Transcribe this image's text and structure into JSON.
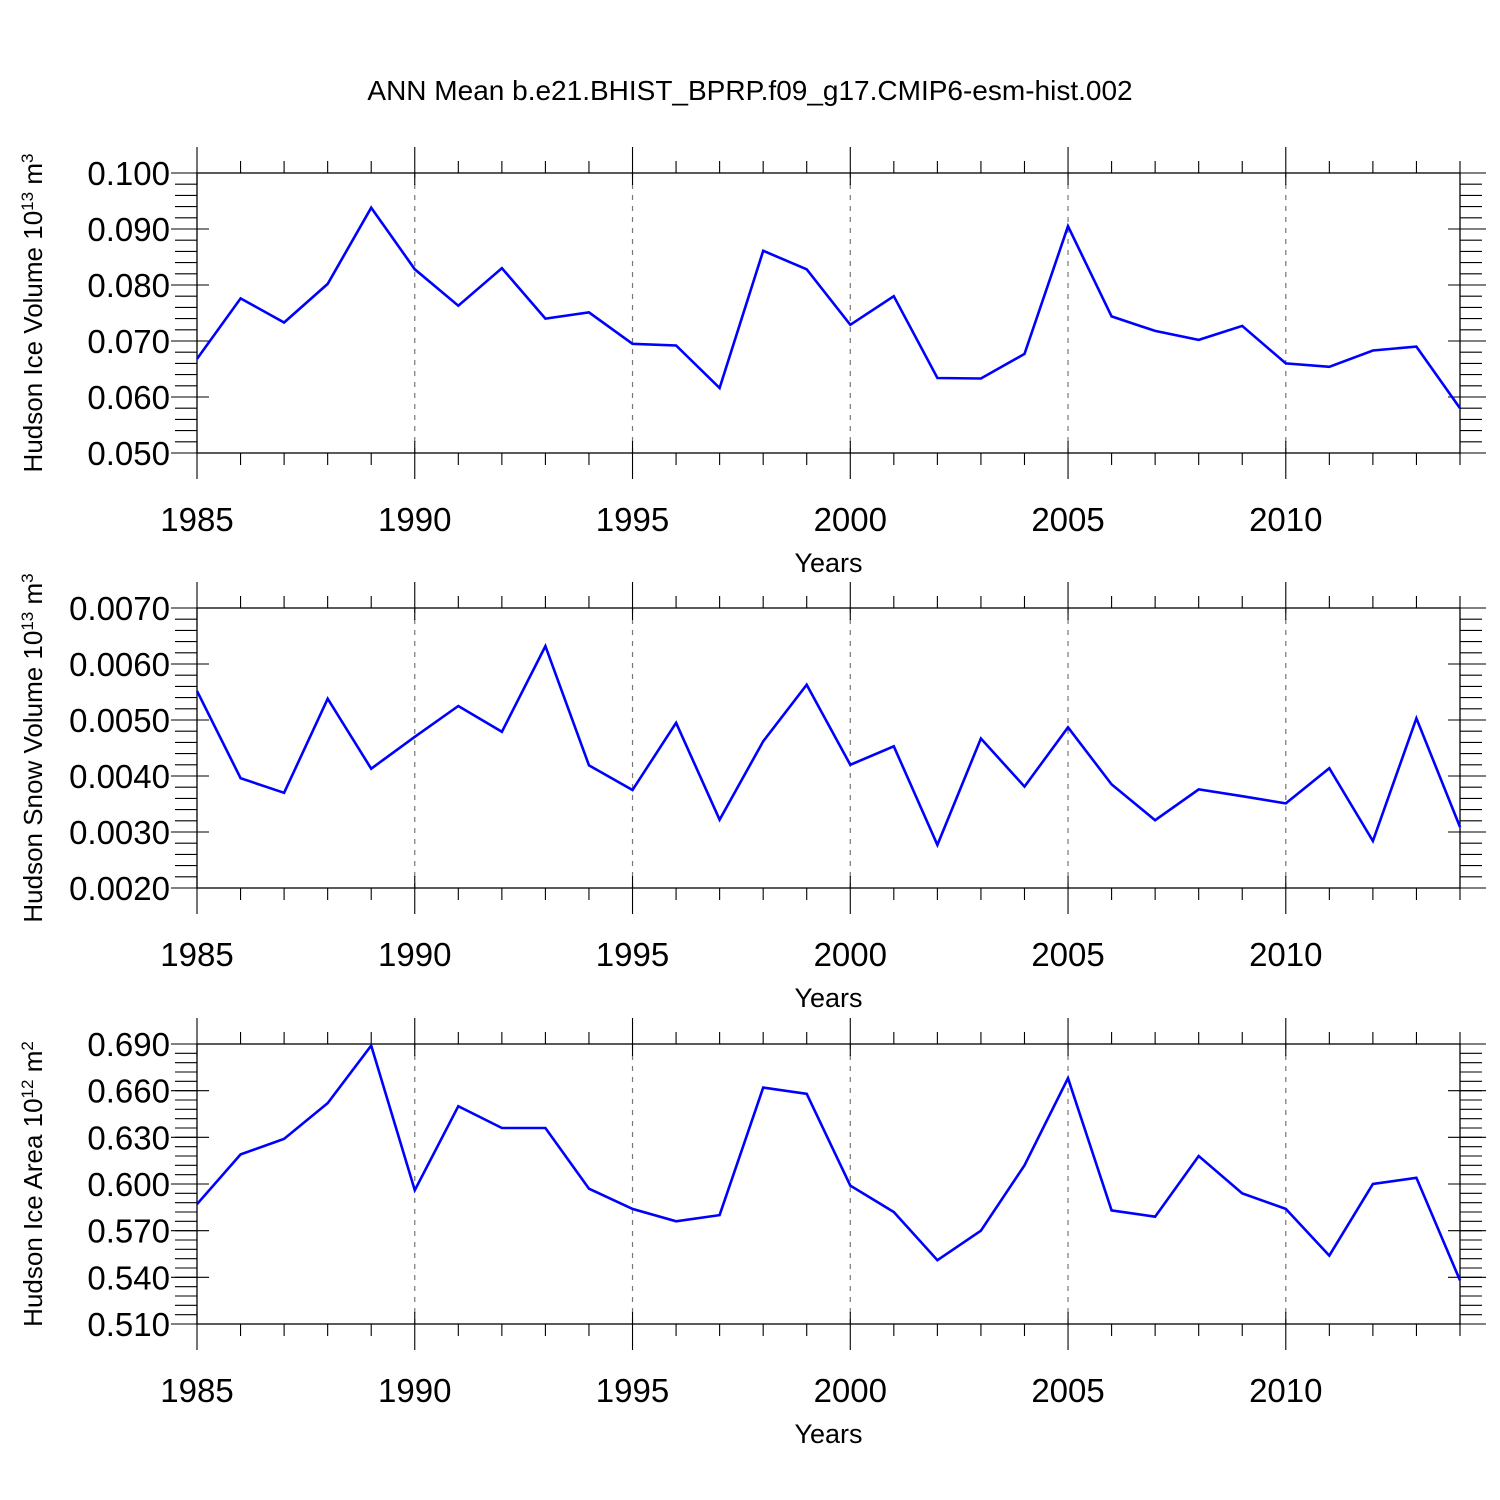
{
  "figure": {
    "title": "ANN Mean b.e21.BHIST_BPRP.f09_g17.CMIP6-esm-hist.002",
    "line_color": "#0000ff"
  },
  "chart_data": [
    {
      "type": "line",
      "title": "",
      "xlabel": "Years",
      "ylabel_prefix": "Hudson Ice Volume 10",
      "ylabel_exp": "13",
      "ylabel_unit": " m",
      "ylabel_unit_exp": "3",
      "xlim": [
        1985,
        2014
      ],
      "ylim": [
        0.05,
        0.1
      ],
      "x_ticks": [
        1985,
        1990,
        1995,
        2000,
        2005,
        2010
      ],
      "x_tick_labels": [
        "1985",
        "1990",
        "1995",
        "2000",
        "2005",
        "2010"
      ],
      "y_ticks": [
        0.05,
        0.06,
        0.07,
        0.08,
        0.09,
        0.1
      ],
      "y_tick_labels": [
        "0.050",
        "0.060",
        "0.070",
        "0.080",
        "0.090",
        "0.100"
      ],
      "y_minor_step": 0.002,
      "grid": "dashed vertical at major x ticks",
      "x": [
        1985,
        1986,
        1987,
        1988,
        1989,
        1990,
        1991,
        1992,
        1993,
        1994,
        1995,
        1996,
        1997,
        1998,
        1999,
        2000,
        2001,
        2002,
        2003,
        2004,
        2005,
        2006,
        2007,
        2008,
        2009,
        2010,
        2011,
        2012,
        2013,
        2014
      ],
      "series": [
        {
          "values": [
            0.0668,
            0.0776,
            0.0733,
            0.0802,
            0.0938,
            0.0828,
            0.0763,
            0.083,
            0.074,
            0.0751,
            0.0695,
            0.0692,
            0.0616,
            0.0861,
            0.0828,
            0.0729,
            0.078,
            0.0634,
            0.0633,
            0.0677,
            0.0905,
            0.0744,
            0.0718,
            0.0702,
            0.0727,
            0.066,
            0.0654,
            0.0683,
            0.069,
            0.058
          ]
        }
      ]
    },
    {
      "type": "line",
      "title": "",
      "xlabel": "Years",
      "ylabel_prefix": "Hudson Snow Volume 10",
      "ylabel_exp": "13",
      "ylabel_unit": " m",
      "ylabel_unit_exp": "3",
      "xlim": [
        1985,
        2014
      ],
      "ylim": [
        0.002,
        0.007
      ],
      "x_ticks": [
        1985,
        1990,
        1995,
        2000,
        2005,
        2010
      ],
      "x_tick_labels": [
        "1985",
        "1990",
        "1995",
        "2000",
        "2005",
        "2010"
      ],
      "y_ticks": [
        0.002,
        0.003,
        0.004,
        0.005,
        0.006,
        0.007
      ],
      "y_tick_labels": [
        "0.0020",
        "0.0030",
        "0.0040",
        "0.0050",
        "0.0060",
        "0.0070"
      ],
      "y_minor_step": 0.0002,
      "grid": "dashed vertical at major x ticks",
      "x": [
        1985,
        1986,
        1987,
        1988,
        1989,
        1990,
        1991,
        1992,
        1993,
        1994,
        1995,
        1996,
        1997,
        1998,
        1999,
        2000,
        2001,
        2002,
        2003,
        2004,
        2005,
        2006,
        2007,
        2008,
        2009,
        2010,
        2011,
        2012,
        2013,
        2014
      ],
      "series": [
        {
          "values": [
            0.00552,
            0.00396,
            0.0037,
            0.00538,
            0.00413,
            0.0047,
            0.00525,
            0.00479,
            0.00632,
            0.00419,
            0.00375,
            0.00495,
            0.00322,
            0.00462,
            0.00563,
            0.0042,
            0.00453,
            0.00277,
            0.00467,
            0.00381,
            0.00487,
            0.00385,
            0.00321,
            0.00376,
            0.00364,
            0.00351,
            0.00414,
            0.00284,
            0.00503,
            0.00309
          ]
        }
      ]
    },
    {
      "type": "line",
      "title": "",
      "xlabel": "Years",
      "ylabel_prefix": "Hudson Ice Area 10",
      "ylabel_exp": "12",
      "ylabel_unit": " m",
      "ylabel_unit_exp": "2",
      "xlim": [
        1985,
        2014
      ],
      "ylim": [
        0.51,
        0.69
      ],
      "x_ticks": [
        1985,
        1990,
        1995,
        2000,
        2005,
        2010
      ],
      "x_tick_labels": [
        "1985",
        "1990",
        "1995",
        "2000",
        "2005",
        "2010"
      ],
      "y_ticks": [
        0.51,
        0.54,
        0.57,
        0.6,
        0.63,
        0.66,
        0.69
      ],
      "y_tick_labels": [
        "0.510",
        "0.540",
        "0.570",
        "0.600",
        "0.630",
        "0.660",
        "0.690"
      ],
      "y_minor_step": 0.006,
      "grid": "dashed vertical at major x ticks",
      "x": [
        1985,
        1986,
        1987,
        1988,
        1989,
        1990,
        1991,
        1992,
        1993,
        1994,
        1995,
        1996,
        1997,
        1998,
        1999,
        2000,
        2001,
        2002,
        2003,
        2004,
        2005,
        2006,
        2007,
        2008,
        2009,
        2010,
        2011,
        2012,
        2013,
        2014
      ],
      "series": [
        {
          "values": [
            0.587,
            0.619,
            0.629,
            0.652,
            0.689,
            0.596,
            0.65,
            0.636,
            0.636,
            0.597,
            0.584,
            0.576,
            0.58,
            0.662,
            0.658,
            0.599,
            0.582,
            0.551,
            0.57,
            0.612,
            0.668,
            0.583,
            0.579,
            0.618,
            0.594,
            0.584,
            0.554,
            0.6,
            0.604,
            0.538
          ]
        }
      ]
    }
  ]
}
